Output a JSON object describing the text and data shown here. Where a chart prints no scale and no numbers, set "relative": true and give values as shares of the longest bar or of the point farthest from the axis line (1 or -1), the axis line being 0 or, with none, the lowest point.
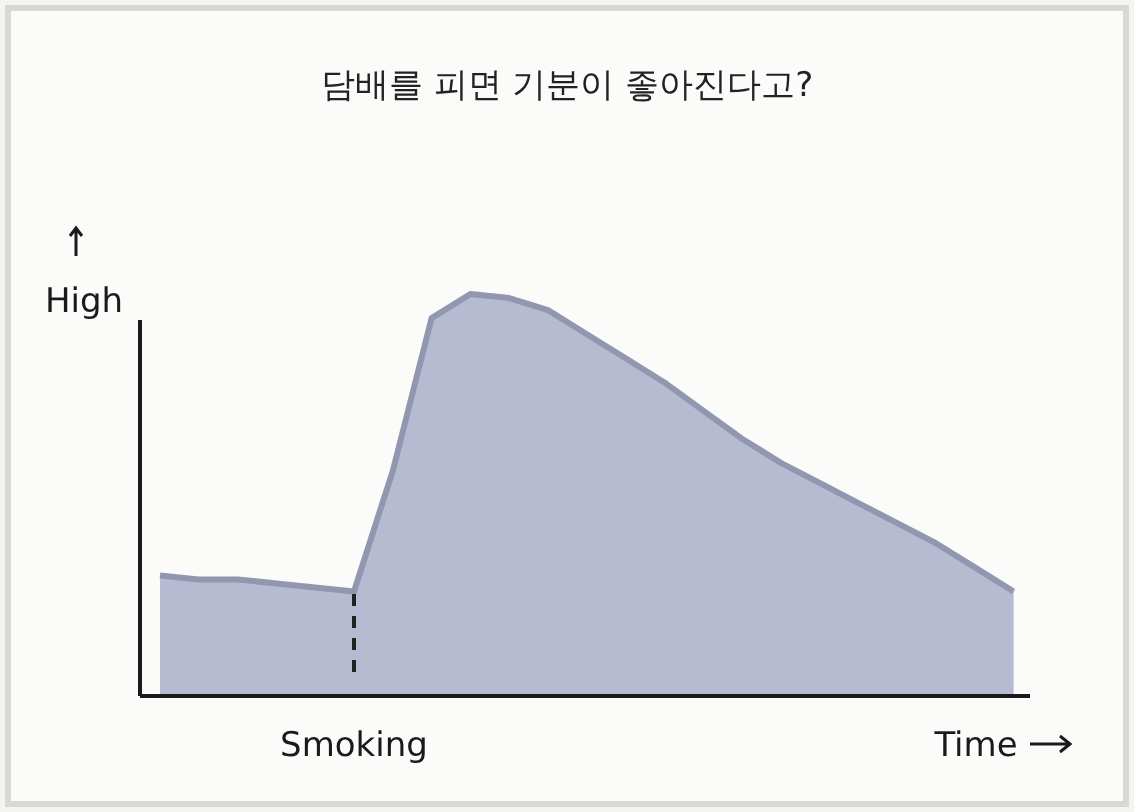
{
  "chart_data": {
    "type": "area",
    "title": "담배를 피면 기분이 좋아진다고?",
    "xlabel": "Time",
    "ylabel": "High",
    "relative": true,
    "categories": [
      null,
      null,
      null,
      null,
      null,
      null,
      null,
      null,
      null,
      null,
      null,
      null,
      null,
      null,
      null,
      null,
      null,
      null,
      null,
      null,
      null,
      null,
      null
    ],
    "series": [
      {
        "color": "#b6bbd2",
        "values": [
          0.3,
          0.29,
          0.29,
          0.28,
          0.27,
          0.26,
          0.56,
          0.94,
          1.0,
          0.99,
          0.96,
          0.9,
          0.84,
          0.78,
          0.71,
          0.64,
          0.58,
          0.53,
          0.48,
          0.43,
          0.38,
          0.32,
          0.26
        ]
      }
    ],
    "annotations": [
      "Smoking"
    ]
  }
}
